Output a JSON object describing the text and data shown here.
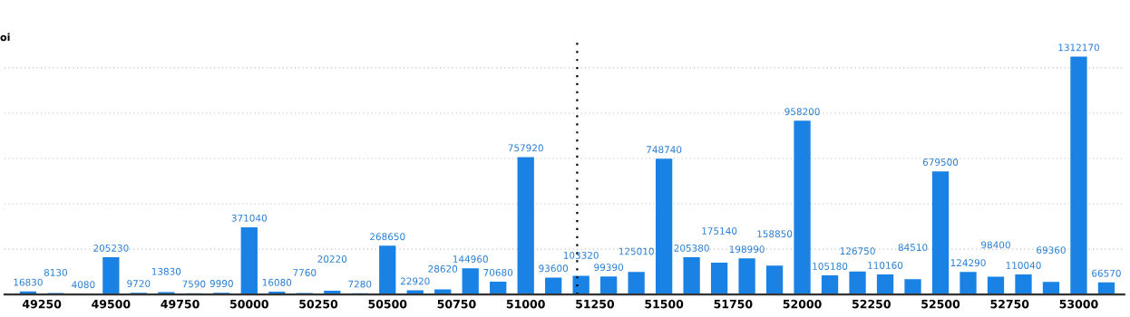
{
  "chart_data": {
    "type": "bar",
    "title": "oi",
    "x": [
      49200,
      49300,
      49400,
      49500,
      49600,
      49700,
      49800,
      49900,
      50000,
      50100,
      50200,
      50300,
      50400,
      50500,
      50600,
      50700,
      50800,
      50900,
      51000,
      51100,
      51200,
      51300,
      51400,
      51500,
      51600,
      51700,
      51800,
      51900,
      52000,
      52100,
      52200,
      52300,
      52400,
      52500,
      52600,
      52700,
      52800,
      52900,
      53000,
      53100
    ],
    "values": [
      16830,
      8130,
      4080,
      205230,
      9720,
      13830,
      7590,
      9990,
      371040,
      16080,
      7760,
      20220,
      7280,
      268650,
      22920,
      28620,
      144960,
      70680,
      757920,
      93600,
      103320,
      99390,
      125010,
      748740,
      205380,
      175140,
      198990,
      158850,
      958200,
      105180,
      126750,
      110160,
      84510,
      679500,
      124290,
      98400,
      110040,
      69360,
      1312170,
      66570
    ],
    "color": "#1a82e4",
    "data_labels": true,
    "xlim": [
      49115,
      53165
    ],
    "xticks": [
      49250,
      49500,
      49750,
      50000,
      50250,
      50500,
      50750,
      51000,
      51250,
      51500,
      51750,
      52000,
      52250,
      52500,
      52750,
      53000
    ],
    "ylim": [
      0,
      1390000
    ],
    "yticks": [
      {
        "value": 250000,
        "label": null
      },
      {
        "value": 500000,
        "label": null
      },
      {
        "value": 750000,
        "label": null
      },
      {
        "value": 1000000,
        "label": null
      },
      {
        "value": 1250000,
        "label": null
      }
    ],
    "tick_labels": "x",
    "grid": "y",
    "ref_lines": [
      {
        "axis": "x",
        "value": 51186,
        "color": "#000000",
        "line_style": "dotted"
      }
    ]
  }
}
